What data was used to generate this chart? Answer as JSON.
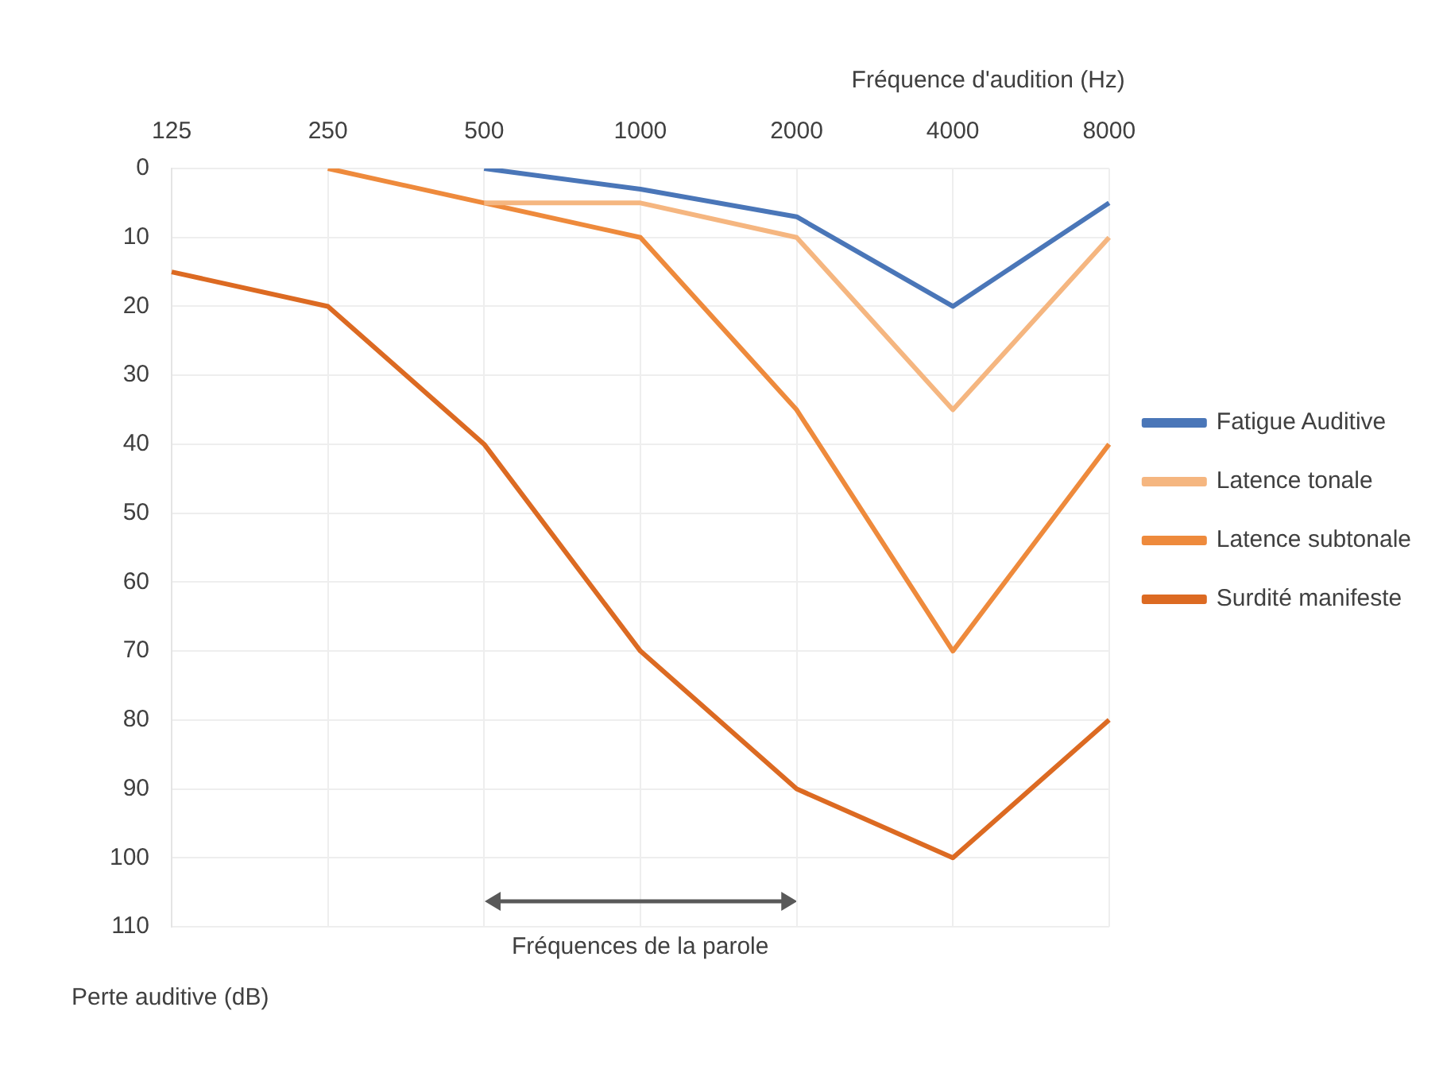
{
  "chart_data": {
    "type": "line",
    "xlabel": "Fréquence d'audition (Hz)",
    "ylabel": "Perte auditive (dB)",
    "categories": [
      "125",
      "250",
      "500",
      "1000",
      "2000",
      "4000",
      "8000"
    ],
    "series": [
      {
        "name": "Fatigue Auditive",
        "color": "#4a76b8",
        "values": [
          null,
          null,
          0,
          3,
          7,
          20,
          5
        ]
      },
      {
        "name": "Latence tonale",
        "color": "#f5b680",
        "values": [
          null,
          null,
          5,
          5,
          10,
          35,
          10
        ]
      },
      {
        "name": "Latence subtonale",
        "color": "#ee8a3c",
        "values": [
          null,
          0,
          5,
          10,
          35,
          70,
          40
        ]
      },
      {
        "name": "Surdité manifeste",
        "color": "#dc6a22",
        "values": [
          15,
          20,
          40,
          70,
          90,
          100,
          80
        ]
      }
    ],
    "ylim": [
      110,
      0
    ],
    "yticks": [
      0,
      10,
      20,
      30,
      40,
      50,
      60,
      70,
      80,
      90,
      100,
      110
    ],
    "grid": true,
    "legend": "right",
    "marker": "none",
    "line_style": "solid",
    "annotations": [
      "Fréquences de la parole"
    ]
  }
}
